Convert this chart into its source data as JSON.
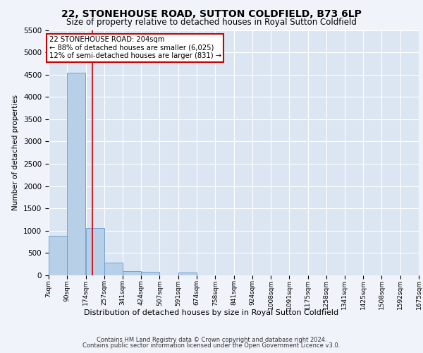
{
  "title_line1": "22, STONEHOUSE ROAD, SUTTON COLDFIELD, B73 6LP",
  "title_line2": "Size of property relative to detached houses in Royal Sutton Coldfield",
  "xlabel": "Distribution of detached houses by size in Royal Sutton Coldfield",
  "ylabel": "Number of detached properties",
  "footnote1": "Contains HM Land Registry data © Crown copyright and database right 2024.",
  "footnote2": "Contains public sector information licensed under the Open Government Licence v3.0.",
  "bar_color": "#b8cfe8",
  "bar_edge_color": "#6699cc",
  "bg_color": "#f0f4fa",
  "plot_bg_color": "#dce6f2",
  "grid_color": "#ffffff",
  "annotation_box_color": "#cc0000",
  "vline_color": "#cc0000",
  "ylim": [
    0,
    5500
  ],
  "yticks": [
    0,
    500,
    1000,
    1500,
    2000,
    2500,
    3000,
    3500,
    4000,
    4500,
    5000,
    5500
  ],
  "property_size": 204,
  "annotation_line1": "22 STONEHOUSE ROAD: 204sqm",
  "annotation_line2": "← 88% of detached houses are smaller (6,025)",
  "annotation_line3": "12% of semi-detached houses are larger (831) →",
  "bin_edges": [
    7,
    90,
    174,
    257,
    341,
    424,
    507,
    591,
    674,
    758,
    841,
    924,
    1008,
    1091,
    1175,
    1258,
    1341,
    1425,
    1508,
    1592,
    1675
  ],
  "bin_labels": [
    "7sqm",
    "90sqm",
    "174sqm",
    "257sqm",
    "341sqm",
    "424sqm",
    "507sqm",
    "591sqm",
    "674sqm",
    "758sqm",
    "841sqm",
    "924sqm",
    "1008sqm",
    "1091sqm",
    "1175sqm",
    "1258sqm",
    "1341sqm",
    "1425sqm",
    "1508sqm",
    "1592sqm",
    "1675sqm"
  ],
  "bar_heights": [
    880,
    4550,
    1060,
    290,
    100,
    80,
    0,
    60,
    0,
    0,
    0,
    0,
    0,
    0,
    0,
    0,
    0,
    0,
    0,
    0
  ]
}
